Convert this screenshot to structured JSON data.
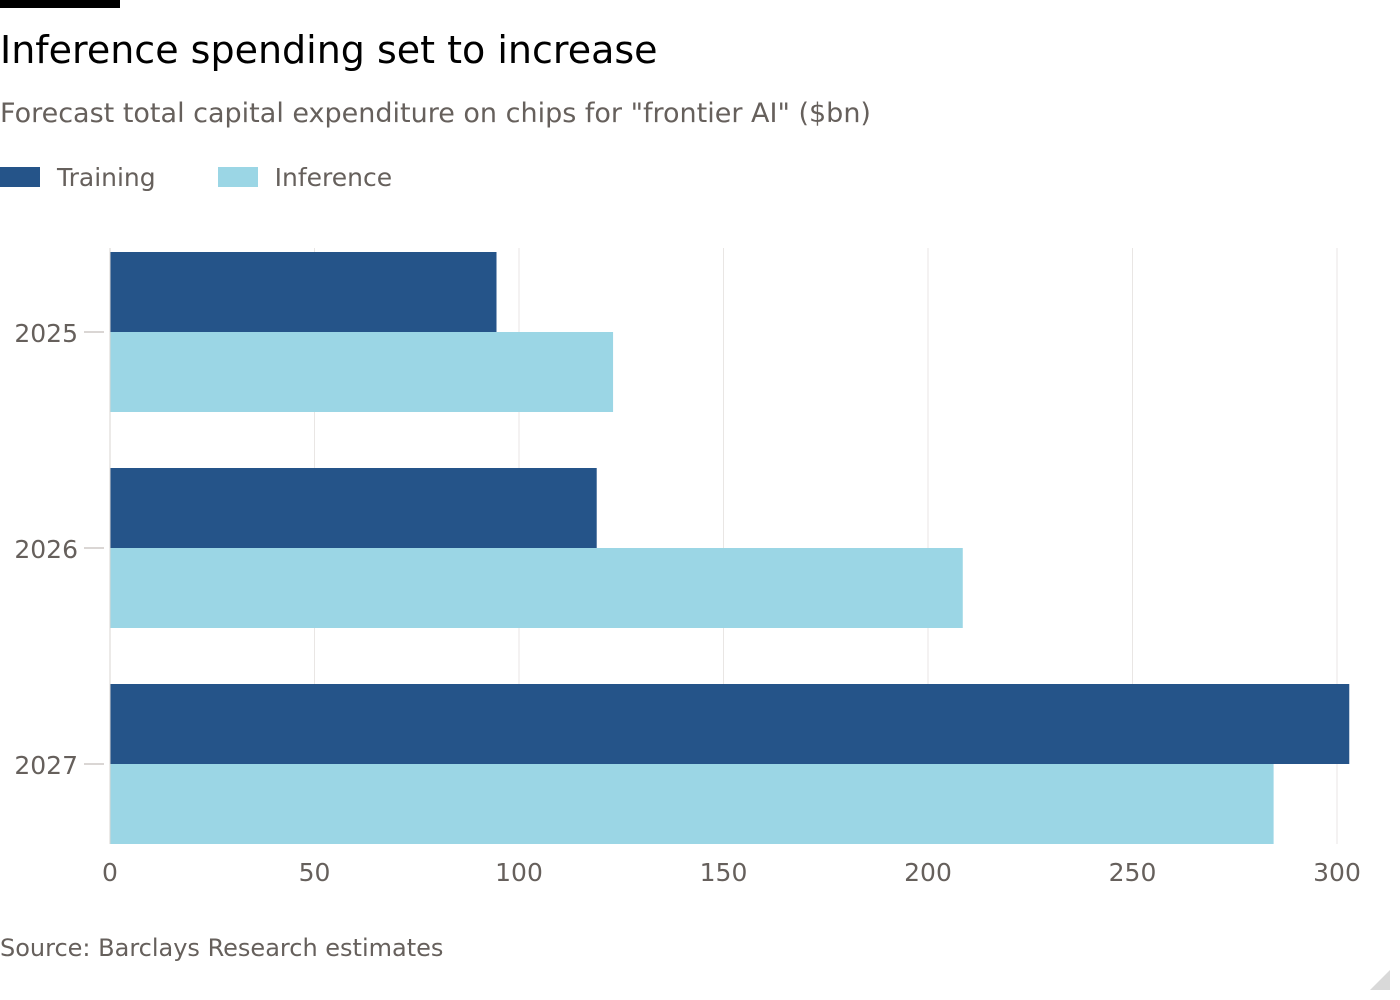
{
  "header": {
    "title": "Inference spending set to increase",
    "subtitle": "Forecast total capital expenditure on chips for \"frontier AI\" ($bn)"
  },
  "legend": [
    {
      "label": "Training",
      "color": "#255489"
    },
    {
      "label": "Inference",
      "color": "#9bd6e5"
    }
  ],
  "chart_data": {
    "type": "bar",
    "orientation": "horizontal",
    "categories": [
      "2025",
      "2026",
      "2027"
    ],
    "series": [
      {
        "name": "Training",
        "color": "#255489",
        "values": [
          94.5,
          119,
          303
        ]
      },
      {
        "name": "Inference",
        "color": "#9bd6e5",
        "values": [
          123,
          208.5,
          284.5
        ]
      }
    ],
    "xlim": [
      0,
      305
    ],
    "xticks": [
      0,
      50,
      100,
      150,
      200,
      250,
      300
    ],
    "xtick_labels": [
      "0",
      "50",
      "100",
      "150",
      "200",
      "250",
      "300"
    ],
    "grid": "vertical",
    "legend_position": "top-left"
  },
  "footer": {
    "source": "Source: Barclays Research estimates"
  }
}
